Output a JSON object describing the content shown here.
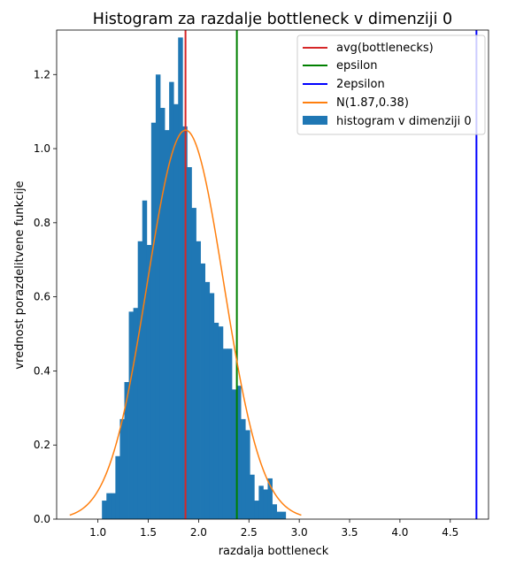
{
  "chart_data": {
    "type": "bar",
    "title": "Histogram za razdalje bottleneck v dimenziji 0",
    "xlabel": "razdalja bottleneck",
    "ylabel": "vrednost porazdelitvene funkcije",
    "xlim": [
      0.59,
      4.88
    ],
    "ylim": [
      0,
      1.32
    ],
    "xticks": [
      1.0,
      1.5,
      2.0,
      2.5,
      3.0,
      3.5,
      4.0,
      4.5
    ],
    "xtick_labels": [
      "1.0",
      "1.5",
      "2.0",
      "2.5",
      "3.0",
      "3.5",
      "4.0",
      "4.5"
    ],
    "yticks": [
      0.0,
      0.2,
      0.4,
      0.6,
      0.8,
      1.0,
      1.2
    ],
    "ytick_labels": [
      "0.0",
      "0.2",
      "0.4",
      "0.6",
      "0.8",
      "1.0",
      "1.2"
    ],
    "legend_position": "top-right",
    "grid": false,
    "histogram": {
      "name": "histogram v dimenziji 0",
      "color": "#1f77b4",
      "bin_start": 1.04,
      "bin_width": 0.0445,
      "heights": [
        0.05,
        0.07,
        0.07,
        0.17,
        0.27,
        0.37,
        0.56,
        0.57,
        0.75,
        0.86,
        0.74,
        1.07,
        1.2,
        1.11,
        1.05,
        1.18,
        1.12,
        1.3,
        1.06,
        0.95,
        0.84,
        0.75,
        0.69,
        0.64,
        0.61,
        0.53,
        0.52,
        0.46,
        0.46,
        0.35,
        0.36,
        0.27,
        0.24,
        0.12,
        0.05,
        0.09,
        0.08,
        0.11,
        0.04,
        0.02,
        0.02
      ]
    },
    "lines": [
      {
        "name": "avg(bottlenecks)",
        "color": "#d62728",
        "x": 1.87
      },
      {
        "name": "epsilon",
        "color": "#008000",
        "x": 2.38
      },
      {
        "name": "2epsilon",
        "color": "#0000ff",
        "x": 4.76
      }
    ],
    "normal_curve": {
      "name": "N(1.87,0.38)",
      "color": "#ff7f0e",
      "mean": 1.87,
      "sd": 0.38,
      "x_range": [
        0.72,
        3.02
      ]
    }
  }
}
